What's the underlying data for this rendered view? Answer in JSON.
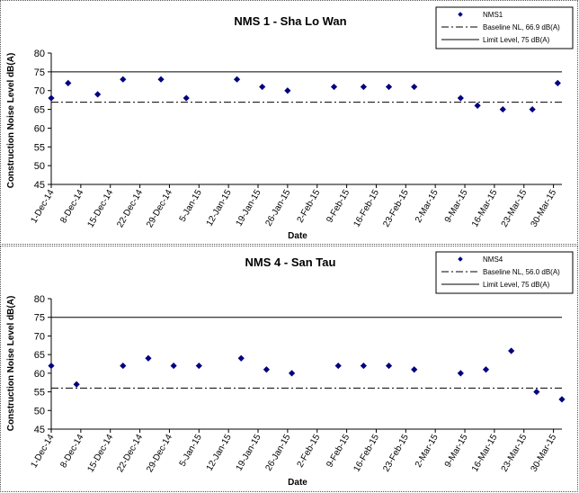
{
  "chart_data": [
    {
      "type": "scatter",
      "title": "NMS 1 - Sha Lo Wan",
      "xlabel": "Date",
      "ylabel": "Construction Noise Level dB(A)",
      "ylim": [
        45,
        80
      ],
      "yticks": [
        "45",
        "50",
        "55",
        "60",
        "65",
        "70",
        "75",
        "80"
      ],
      "xticks": [
        "1-Dec-14",
        "8-Dec-14",
        "15-Dec-14",
        "22-Dec-14",
        "29-Dec-14",
        "5-Jan-15",
        "12-Jan-15",
        "19-Jan-15",
        "26-Jan-15",
        "2-Feb-15",
        "9-Feb-15",
        "16-Feb-15",
        "23-Feb-15",
        "2-Mar-15",
        "9-Mar-15",
        "16-Mar-15",
        "23-Mar-15",
        "30-Mar-15"
      ],
      "legend_position": "top-right",
      "series": [
        {
          "name": "NMS1",
          "color": "#000080",
          "points": [
            {
              "x": "1-Dec-14",
              "y": 68
            },
            {
              "x": "5-Dec-14",
              "y": 72
            },
            {
              "x": "12-Dec-14",
              "y": 69
            },
            {
              "x": "18-Dec-14",
              "y": 73
            },
            {
              "x": "27-Dec-14",
              "y": 73
            },
            {
              "x": "2-Jan-15",
              "y": 68
            },
            {
              "x": "14-Jan-15",
              "y": 73
            },
            {
              "x": "20-Jan-15",
              "y": 71
            },
            {
              "x": "26-Jan-15",
              "y": 70
            },
            {
              "x": "6-Feb-15",
              "y": 71
            },
            {
              "x": "13-Feb-15",
              "y": 71
            },
            {
              "x": "19-Feb-15",
              "y": 71
            },
            {
              "x": "25-Feb-15",
              "y": 71
            },
            {
              "x": "8-Mar-15",
              "y": 68
            },
            {
              "x": "12-Mar-15",
              "y": 66
            },
            {
              "x": "18-Mar-15",
              "y": 65
            },
            {
              "x": "25-Mar-15",
              "y": 65
            },
            {
              "x": "31-Mar-15",
              "y": 72
            }
          ]
        }
      ],
      "reference_lines": [
        {
          "name": "Baseline NL, 66.9 dB(A)",
          "y": 66.9,
          "style": "dash-dot",
          "color": "#000000"
        },
        {
          "name": "Limit Level, 75 dB(A)",
          "y": 75,
          "style": "solid",
          "color": "#000000"
        }
      ]
    },
    {
      "type": "scatter",
      "title": "NMS 4 - San Tau",
      "xlabel": "Date",
      "ylabel": "Construction Noise Level dB(A)",
      "ylim": [
        45,
        80
      ],
      "yticks": [
        "45",
        "50",
        "55",
        "60",
        "65",
        "70",
        "75",
        "80"
      ],
      "xticks": [
        "1-Dec-14",
        "8-Dec-14",
        "15-Dec-14",
        "22-Dec-14",
        "29-Dec-14",
        "5-Jan-15",
        "12-Jan-15",
        "19-Jan-15",
        "26-Jan-15",
        "2-Feb-15",
        "9-Feb-15",
        "16-Feb-15",
        "23-Feb-15",
        "2-Mar-15",
        "9-Mar-15",
        "16-Mar-15",
        "23-Mar-15",
        "30-Mar-15"
      ],
      "legend_position": "top-right",
      "series": [
        {
          "name": "NMS4",
          "color": "#000080",
          "points": [
            {
              "x": "1-Dec-14",
              "y": 62
            },
            {
              "x": "7-Dec-14",
              "y": 57
            },
            {
              "x": "18-Dec-14",
              "y": 62
            },
            {
              "x": "24-Dec-14",
              "y": 64
            },
            {
              "x": "30-Dec-14",
              "y": 62
            },
            {
              "x": "5-Jan-15",
              "y": 62
            },
            {
              "x": "15-Jan-15",
              "y": 64
            },
            {
              "x": "21-Jan-15",
              "y": 61
            },
            {
              "x": "27-Jan-15",
              "y": 60
            },
            {
              "x": "7-Feb-15",
              "y": 62
            },
            {
              "x": "13-Feb-15",
              "y": 62
            },
            {
              "x": "19-Feb-15",
              "y": 62
            },
            {
              "x": "25-Feb-15",
              "y": 61
            },
            {
              "x": "8-Mar-15",
              "y": 60
            },
            {
              "x": "14-Mar-15",
              "y": 61
            },
            {
              "x": "20-Mar-15",
              "y": 66
            },
            {
              "x": "26-Mar-15",
              "y": 55
            },
            {
              "x": "1-Apr-15",
              "y": 53
            }
          ]
        }
      ],
      "reference_lines": [
        {
          "name": "Baseline NL, 56.0 dB(A)",
          "y": 56.0,
          "style": "dash-dot",
          "color": "#000000"
        },
        {
          "name": "Limit Level, 75 dB(A)",
          "y": 75,
          "style": "solid",
          "color": "#000000"
        }
      ]
    }
  ]
}
